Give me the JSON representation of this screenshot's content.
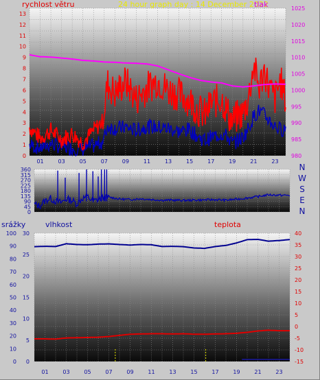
{
  "chart_data": [
    {
      "type": "line",
      "title": "24 hour graph day : 14 December 2022",
      "ylabel_left": "rychlost větru",
      "ylabel_right": "tlak",
      "x_ticks": [
        "01",
        "03",
        "05",
        "07",
        "09",
        "11",
        "13",
        "15",
        "17",
        "19",
        "21",
        "23"
      ],
      "left_axis": {
        "ticks": [
          "0",
          "1",
          "2",
          "3",
          "4",
          "5",
          "6",
          "7",
          "8",
          "9",
          "10",
          "11",
          "12",
          "13"
        ],
        "range": [
          0,
          13.5
        ]
      },
      "right_axis": {
        "ticks": [
          "980",
          "985",
          "990",
          "995",
          "1000",
          "1005",
          "1010",
          "1015",
          "1020",
          "1025"
        ],
        "range": [
          980,
          1025
        ]
      },
      "colors": {
        "gust": "#ff0000",
        "average": "#0000c0",
        "pressure": "#ff00ff"
      },
      "series": [
        {
          "key": "pressure",
          "hours": [
            0,
            1,
            2,
            3,
            4,
            5,
            6,
            7,
            8,
            9,
            10,
            11,
            12,
            13,
            14,
            15,
            16,
            17,
            18,
            19,
            20,
            21,
            22,
            23,
            24
          ],
          "values": [
            1010.8,
            1010.2,
            1010.1,
            1009.8,
            1009.5,
            1009.1,
            1008.9,
            1008.6,
            1008.5,
            1008.3,
            1008.2,
            1008.0,
            1007.4,
            1006.2,
            1005.0,
            1003.9,
            1003.0,
            1002.5,
            1002.2,
            1001.3,
            1001.0,
            1001.3,
            1001.7,
            1001.9,
            1001.8
          ]
        },
        {
          "key": "gust",
          "hours": [
            0,
            1,
            2,
            3,
            4,
            5,
            6,
            6.9,
            7.3,
            8,
            9,
            10,
            11,
            12,
            13,
            14,
            15,
            15.8,
            16.5,
            17,
            18,
            18.5,
            19,
            19.5,
            20,
            20.5,
            21,
            21.5,
            22,
            22.5,
            23,
            23.5,
            24
          ],
          "values": [
            2.6,
            1.6,
            2.3,
            1.5,
            2.0,
            1.2,
            2.3,
            3.2,
            6.6,
            5.7,
            6.8,
            5.2,
            6.2,
            6.9,
            6.0,
            5.6,
            5.1,
            4.2,
            3.7,
            4.8,
            5.2,
            4.1,
            3.1,
            3.6,
            3.9,
            5.2,
            8.3,
            6.2,
            7.8,
            6.1,
            5.2,
            6.9,
            5.1
          ]
        },
        {
          "key": "average",
          "hours": [
            0,
            1,
            2,
            3,
            4,
            5,
            6,
            6.9,
            7.3,
            8,
            9,
            10,
            11,
            12,
            13,
            14,
            15,
            15.8,
            16.5,
            17,
            18,
            18.5,
            19,
            19.5,
            20,
            20.5,
            21,
            21.5,
            22,
            22.5,
            23,
            23.5,
            24
          ],
          "values": [
            1.0,
            0.7,
            1.1,
            0.8,
            0.7,
            0.6,
            0.9,
            1.3,
            2.7,
            2.5,
            2.6,
            2.3,
            2.7,
            2.6,
            2.5,
            2.2,
            2.4,
            1.7,
            1.4,
            1.7,
            2.0,
            1.8,
            1.1,
            1.4,
            1.7,
            2.5,
            3.6,
            4.1,
            3.7,
            3.2,
            2.7,
            2.4,
            2.5
          ]
        }
      ]
    },
    {
      "type": "line",
      "title": "",
      "ylabel_right": "N W S E N",
      "y_ticks": [
        "360",
        "315",
        "270",
        "225",
        "180",
        "135",
        "90",
        "45",
        "0"
      ],
      "y_range": [
        0,
        360
      ],
      "colors": {
        "direction": "#0000b0"
      },
      "series": [
        {
          "key": "direction",
          "hours": [
            0,
            0.5,
            1,
            1.5,
            2,
            2.5,
            3,
            3.5,
            4,
            4.5,
            5,
            5.5,
            6,
            6.5,
            7,
            8,
            9,
            10,
            11,
            12,
            13,
            14,
            15,
            16,
            17,
            18,
            19,
            20,
            21,
            22,
            23,
            24
          ],
          "values": [
            65,
            50,
            95,
            115,
            90,
            80,
            110,
            100,
            70,
            115,
            130,
            90,
            105,
            120,
            125,
            110,
            105,
            112,
            105,
            100,
            100,
            98,
            100,
            102,
            104,
            100,
            108,
            118,
            130,
            145,
            142,
            140
          ],
          "spikes": [
            {
              "hour": 2.2,
              "value": 350
            },
            {
              "hour": 2.9,
              "value": 290
            },
            {
              "hour": 4.2,
              "value": 330
            },
            {
              "hour": 4.9,
              "value": 360
            },
            {
              "hour": 5.5,
              "value": 345
            },
            {
              "hour": 6.0,
              "value": 300
            },
            {
              "hour": 6.3,
              "value": 360
            },
            {
              "hour": 6.6,
              "value": 360
            },
            {
              "hour": 6.8,
              "value": 360
            }
          ]
        }
      ]
    },
    {
      "type": "line",
      "ylabel_left_a": "srážky",
      "ylabel_left_b": "vlhkost",
      "ylabel_right": "teplota",
      "left_ticks_a": [
        "0",
        "10",
        "20",
        "30",
        "40",
        "50",
        "60",
        "70",
        "80",
        "90",
        "100"
      ],
      "left_ticks_b": [
        "0",
        "5",
        "10",
        "15",
        "20",
        "25",
        "30"
      ],
      "right_ticks": [
        "-15",
        "-10",
        "-5",
        "0",
        "5",
        "10",
        "15",
        "20",
        "25",
        "30",
        "35",
        "40"
      ],
      "humidity_axis_range": [
        0,
        100
      ],
      "temperature_axis_range": [
        -15,
        40
      ],
      "colors": {
        "humidity": "#000090",
        "temperature": "#e00000",
        "rain": "#c8c800"
      },
      "series": [
        {
          "key": "humidity",
          "hours": [
            0,
            1,
            2,
            3,
            4,
            5,
            6,
            7,
            8,
            9,
            10,
            11,
            12,
            13,
            14,
            15,
            16,
            17,
            18,
            19,
            20,
            21,
            22,
            23,
            24
          ],
          "values": [
            89.5,
            89.8,
            89.6,
            91.8,
            91.2,
            91.0,
            91.5,
            91.7,
            91.2,
            90.8,
            91.2,
            91.0,
            89.6,
            89.8,
            89.5,
            88.5,
            88.2,
            89.6,
            90.5,
            92.4,
            95.0,
            95.2,
            93.8,
            94.3,
            95.1
          ]
        },
        {
          "key": "temperature",
          "hours": [
            0,
            1,
            2,
            3,
            4,
            5,
            6,
            7,
            8,
            9,
            10,
            11,
            12,
            13,
            14,
            15,
            16,
            17,
            18,
            19,
            20,
            21,
            22,
            23,
            24
          ],
          "values": [
            -5.3,
            -5.3,
            -5.4,
            -4.9,
            -4.8,
            -4.7,
            -4.6,
            -4.3,
            -3.8,
            -3.3,
            -3.2,
            -3.1,
            -3.1,
            -3.2,
            -3.1,
            -3.3,
            -3.3,
            -3.2,
            -3.1,
            -2.9,
            -2.5,
            -1.9,
            -1.6,
            -1.8,
            -1.8
          ]
        },
        {
          "key": "rain",
          "note_hours": [
            7.6,
            16.1
          ],
          "values": [
            3.2,
            3.2
          ]
        }
      ]
    }
  ]
}
